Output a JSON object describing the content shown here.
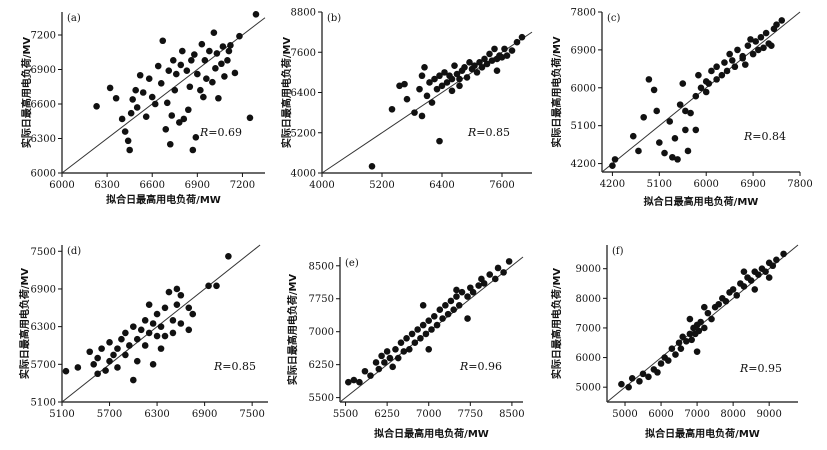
{
  "chart_data": [
    {
      "type": "scatter",
      "panel_label": "(a)",
      "xlabel": "拟合日最高用电负荷/MW",
      "ylabel": "实际日最高用电负荷/MV",
      "xlim": [
        6000,
        7350
      ],
      "ylim": [
        6000,
        7400
      ],
      "xticks": [
        6000,
        6300,
        6600,
        6900,
        7200
      ],
      "yticks": [
        6000,
        6300,
        6600,
        6900,
        7200
      ],
      "r_prefix": "R",
      "r_value": "=0.69",
      "diagonal": true,
      "points": [
        [
          6230,
          6580
        ],
        [
          6320,
          6740
        ],
        [
          6360,
          6650
        ],
        [
          6400,
          6470
        ],
        [
          6420,
          6360
        ],
        [
          6440,
          6280
        ],
        [
          6450,
          6200
        ],
        [
          6460,
          6520
        ],
        [
          6470,
          6640
        ],
        [
          6490,
          6720
        ],
        [
          6500,
          6570
        ],
        [
          6520,
          6850
        ],
        [
          6540,
          6700
        ],
        [
          6560,
          6490
        ],
        [
          6580,
          6820
        ],
        [
          6600,
          6660
        ],
        [
          6620,
          6600
        ],
        [
          6640,
          6930
        ],
        [
          6660,
          6780
        ],
        [
          6670,
          7150
        ],
        [
          6690,
          6380
        ],
        [
          6700,
          6610
        ],
        [
          6710,
          6890
        ],
        [
          6720,
          6250
        ],
        [
          6730,
          6500
        ],
        [
          6740,
          6980
        ],
        [
          6750,
          6720
        ],
        [
          6760,
          6860
        ],
        [
          6780,
          6440
        ],
        [
          6790,
          6940
        ],
        [
          6800,
          7060
        ],
        [
          6810,
          6470
        ],
        [
          6830,
          6890
        ],
        [
          6840,
          6550
        ],
        [
          6850,
          6750
        ],
        [
          6860,
          6980
        ],
        [
          6870,
          6200
        ],
        [
          6880,
          7030
        ],
        [
          6890,
          6310
        ],
        [
          6900,
          6860
        ],
        [
          6920,
          6720
        ],
        [
          6930,
          7120
        ],
        [
          6940,
          6660
        ],
        [
          6950,
          6980
        ],
        [
          6960,
          6820
        ],
        [
          6980,
          7060
        ],
        [
          7000,
          6790
        ],
        [
          7010,
          7220
        ],
        [
          7020,
          6910
        ],
        [
          7030,
          7040
        ],
        [
          7040,
          6650
        ],
        [
          7060,
          6950
        ],
        [
          7070,
          7100
        ],
        [
          7080,
          6840
        ],
        [
          7100,
          6980
        ],
        [
          7110,
          7060
        ],
        [
          7120,
          7110
        ],
        [
          7150,
          6870
        ],
        [
          7180,
          7190
        ],
        [
          7250,
          6480
        ],
        [
          7290,
          7380
        ]
      ]
    },
    {
      "type": "scatter",
      "panel_label": "(b)",
      "xlabel": "",
      "ylabel": "实际日最高用电负荷/MV",
      "xlim": [
        4000,
        8200
      ],
      "ylim": [
        4000,
        8800
      ],
      "xticks": [
        4000,
        5200,
        6400,
        7600
      ],
      "yticks": [
        4000,
        5200,
        6400,
        7600,
        8800
      ],
      "r_prefix": "R",
      "r_value": "=0.85",
      "diagonal": true,
      "points": [
        [
          5000,
          4200
        ],
        [
          5400,
          5900
        ],
        [
          5550,
          6600
        ],
        [
          5700,
          6200
        ],
        [
          5850,
          5800
        ],
        [
          5950,
          6500
        ],
        [
          6000,
          6900
        ],
        [
          6050,
          7150
        ],
        [
          6100,
          6300
        ],
        [
          6150,
          6700
        ],
        [
          6200,
          6100
        ],
        [
          6250,
          6800
        ],
        [
          6300,
          6500
        ],
        [
          6350,
          6900
        ],
        [
          6400,
          6600
        ],
        [
          6450,
          7000
        ],
        [
          6500,
          6700
        ],
        [
          6550,
          6900
        ],
        [
          6600,
          6800
        ],
        [
          6650,
          7200
        ],
        [
          6700,
          6950
        ],
        [
          6750,
          6800
        ],
        [
          6800,
          7050
        ],
        [
          6850,
          7150
        ],
        [
          6900,
          6850
        ],
        [
          6950,
          7300
        ],
        [
          7000,
          7100
        ],
        [
          7050,
          7200
        ],
        [
          7100,
          7000
        ],
        [
          7150,
          7300
        ],
        [
          7200,
          7150
        ],
        [
          7250,
          7400
        ],
        [
          7300,
          7250
        ],
        [
          7350,
          7550
        ],
        [
          7400,
          7350
        ],
        [
          7450,
          7700
        ],
        [
          7500,
          7400
        ],
        [
          7550,
          7500
        ],
        [
          7600,
          7450
        ],
        [
          7650,
          7700
        ],
        [
          7700,
          7500
        ],
        [
          7800,
          7650
        ],
        [
          7900,
          7900
        ],
        [
          8000,
          8050
        ],
        [
          6350,
          4950
        ],
        [
          6000,
          5700
        ],
        [
          5650,
          6650
        ],
        [
          7500,
          7050
        ],
        [
          6600,
          6450
        ],
        [
          6750,
          6600
        ]
      ]
    },
    {
      "type": "scatter",
      "panel_label": "(c)",
      "xlabel": "拟合日最高用电负荷/MW",
      "ylabel": "实际日最高用电负荷/MV",
      "xlim": [
        4000,
        7800
      ],
      "ylim": [
        4000,
        7800
      ],
      "xticks": [
        4200,
        5100,
        6000,
        6900,
        7800
      ],
      "yticks": [
        4200,
        5100,
        6000,
        6900,
        7800
      ],
      "r_prefix": "R",
      "r_value": "=0.84",
      "diagonal": true,
      "points": [
        [
          4200,
          4150
        ],
        [
          4250,
          4300
        ],
        [
          4600,
          4850
        ],
        [
          4700,
          4500
        ],
        [
          4800,
          5300
        ],
        [
          4900,
          6200
        ],
        [
          5000,
          5950
        ],
        [
          5050,
          5450
        ],
        [
          5100,
          4700
        ],
        [
          5200,
          4450
        ],
        [
          5300,
          5200
        ],
        [
          5350,
          4350
        ],
        [
          5400,
          4800
        ],
        [
          5450,
          4300
        ],
        [
          5500,
          5600
        ],
        [
          5550,
          6100
        ],
        [
          5600,
          5000
        ],
        [
          5650,
          4500
        ],
        [
          5700,
          5400
        ],
        [
          5800,
          5800
        ],
        [
          5850,
          6300
        ],
        [
          5900,
          6000
        ],
        [
          6000,
          5900
        ],
        [
          6050,
          6100
        ],
        [
          6100,
          6400
        ],
        [
          6200,
          6200
        ],
        [
          6300,
          6300
        ],
        [
          6350,
          6600
        ],
        [
          6400,
          6400
        ],
        [
          6500,
          6650
        ],
        [
          6550,
          6500
        ],
        [
          6600,
          6900
        ],
        [
          6700,
          6750
        ],
        [
          6750,
          6550
        ],
        [
          6800,
          7000
        ],
        [
          6900,
          6800
        ],
        [
          6950,
          7100
        ],
        [
          7000,
          6900
        ],
        [
          7050,
          7200
        ],
        [
          7100,
          6950
        ],
        [
          7150,
          7300
        ],
        [
          7200,
          7050
        ],
        [
          7300,
          7400
        ],
        [
          7350,
          7500
        ],
        [
          7450,
          7600
        ],
        [
          5800,
          5000
        ],
        [
          6000,
          6150
        ],
        [
          5600,
          5450
        ],
        [
          6200,
          6500
        ],
        [
          6450,
          6800
        ],
        [
          6700,
          6700
        ],
        [
          6850,
          7150
        ],
        [
          7250,
          7000
        ]
      ]
    },
    {
      "type": "scatter",
      "panel_label": "(d)",
      "xlabel": "",
      "ylabel": "实际日最高用电负荷/MV",
      "xlim": [
        5100,
        7700
      ],
      "ylim": [
        5100,
        7600
      ],
      "xticks": [
        5100,
        5700,
        6300,
        6900,
        7500
      ],
      "yticks": [
        5100,
        5700,
        6300,
        6900,
        7500
      ],
      "r_prefix": "R",
      "r_value": "=0.85",
      "diagonal": true,
      "points": [
        [
          5150,
          5590
        ],
        [
          5300,
          5650
        ],
        [
          5450,
          5900
        ],
        [
          5500,
          5700
        ],
        [
          5550,
          5800
        ],
        [
          5600,
          5950
        ],
        [
          5650,
          5600
        ],
        [
          5700,
          5750
        ],
        [
          5700,
          6050
        ],
        [
          5750,
          5850
        ],
        [
          5800,
          5650
        ],
        [
          5800,
          5950
        ],
        [
          5850,
          6100
        ],
        [
          5900,
          5850
        ],
        [
          5900,
          6200
        ],
        [
          5950,
          6000
        ],
        [
          6000,
          6300
        ],
        [
          6050,
          6100
        ],
        [
          6050,
          5750
        ],
        [
          6100,
          6250
        ],
        [
          6150,
          6000
        ],
        [
          6150,
          6400
        ],
        [
          6200,
          6200
        ],
        [
          6200,
          6650
        ],
        [
          6250,
          6350
        ],
        [
          6300,
          6150
        ],
        [
          6300,
          6500
        ],
        [
          6350,
          5950
        ],
        [
          6350,
          6300
        ],
        [
          6400,
          6600
        ],
        [
          6400,
          6150
        ],
        [
          6450,
          6850
        ],
        [
          6500,
          6400
        ],
        [
          6500,
          6200
        ],
        [
          6550,
          6650
        ],
        [
          6550,
          6900
        ],
        [
          6600,
          6350
        ],
        [
          6700,
          6600
        ],
        [
          6700,
          6250
        ],
        [
          6950,
          6950
        ],
        [
          7050,
          6950
        ],
        [
          7200,
          7420
        ],
        [
          6000,
          5450
        ],
        [
          5550,
          5550
        ],
        [
          6250,
          5700
        ],
        [
          6600,
          6800
        ],
        [
          6750,
          6500
        ]
      ]
    },
    {
      "type": "scatter",
      "panel_label": "(e)",
      "xlabel": "拟合日最高用电负荷/MW",
      "ylabel": "实际日最高用电负荷/MV",
      "xlim": [
        5400,
        8700
      ],
      "ylim": [
        5400,
        8700
      ],
      "xticks": [
        5500,
        6250,
        7000,
        7750,
        8500
      ],
      "yticks": [
        5500,
        6250,
        7000,
        7750,
        8500
      ],
      "r_prefix": "R",
      "r_value": "=0.96",
      "diagonal": true,
      "points": [
        [
          5550,
          5850
        ],
        [
          5650,
          5900
        ],
        [
          5750,
          5850
        ],
        [
          5850,
          6100
        ],
        [
          5950,
          6000
        ],
        [
          6050,
          6300
        ],
        [
          6100,
          6150
        ],
        [
          6150,
          6450
        ],
        [
          6200,
          6300
        ],
        [
          6250,
          6550
        ],
        [
          6300,
          6400
        ],
        [
          6350,
          6200
        ],
        [
          6400,
          6600
        ],
        [
          6450,
          6400
        ],
        [
          6500,
          6750
        ],
        [
          6550,
          6550
        ],
        [
          6600,
          6850
        ],
        [
          6650,
          6600
        ],
        [
          6700,
          6950
        ],
        [
          6750,
          6750
        ],
        [
          6800,
          7050
        ],
        [
          6850,
          6850
        ],
        [
          6900,
          7150
        ],
        [
          6950,
          6950
        ],
        [
          7000,
          7250
        ],
        [
          7050,
          7050
        ],
        [
          7100,
          7350
        ],
        [
          7150,
          7150
        ],
        [
          7200,
          7500
        ],
        [
          7250,
          7300
        ],
        [
          7300,
          7600
        ],
        [
          7350,
          7400
        ],
        [
          7400,
          7700
        ],
        [
          7450,
          7500
        ],
        [
          7500,
          7800
        ],
        [
          7550,
          7600
        ],
        [
          7600,
          7900
        ],
        [
          7700,
          7800
        ],
        [
          7750,
          8000
        ],
        [
          7800,
          7900
        ],
        [
          7900,
          8050
        ],
        [
          7950,
          8200
        ],
        [
          8000,
          8100
        ],
        [
          8100,
          8300
        ],
        [
          8200,
          8200
        ],
        [
          8250,
          8450
        ],
        [
          8350,
          8350
        ],
        [
          8450,
          8600
        ],
        [
          7000,
          6600
        ],
        [
          7500,
          7950
        ],
        [
          6900,
          7600
        ],
        [
          7700,
          7300
        ]
      ]
    },
    {
      "type": "scatter",
      "panel_label": "(f)",
      "xlabel": "拟合日最高用电负荷/MW",
      "ylabel": "实际日最高用电负荷/MV",
      "xlim": [
        4500,
        9800
      ],
      "ylim": [
        4500,
        9800
      ],
      "xticks": [
        5000,
        6000,
        7000,
        8000,
        9000
      ],
      "yticks": [
        5000,
        6000,
        7000,
        8000,
        9000
      ],
      "r_prefix": "R",
      "r_value": "=0.95",
      "diagonal": true,
      "points": [
        [
          4900,
          5100
        ],
        [
          5100,
          5000
        ],
        [
          5200,
          5300
        ],
        [
          5400,
          5200
        ],
        [
          5500,
          5450
        ],
        [
          5650,
          5350
        ],
        [
          5800,
          5600
        ],
        [
          5900,
          5500
        ],
        [
          6000,
          5800
        ],
        [
          6100,
          6000
        ],
        [
          6200,
          5900
        ],
        [
          6300,
          6300
        ],
        [
          6400,
          6100
        ],
        [
          6500,
          6500
        ],
        [
          6550,
          6300
        ],
        [
          6600,
          6700
        ],
        [
          6700,
          6550
        ],
        [
          6800,
          6800
        ],
        [
          6850,
          6600
        ],
        [
          6900,
          7000
        ],
        [
          6950,
          6800
        ],
        [
          7000,
          7100
        ],
        [
          7050,
          6900
        ],
        [
          7100,
          7200
        ],
        [
          7200,
          7000
        ],
        [
          7300,
          7500
        ],
        [
          7400,
          7300
        ],
        [
          7500,
          7700
        ],
        [
          7600,
          7800
        ],
        [
          7700,
          8000
        ],
        [
          7800,
          7900
        ],
        [
          7900,
          8200
        ],
        [
          8000,
          8300
        ],
        [
          8100,
          8100
        ],
        [
          8200,
          8500
        ],
        [
          8300,
          8400
        ],
        [
          8400,
          8700
        ],
        [
          8500,
          8600
        ],
        [
          8600,
          8900
        ],
        [
          8700,
          8800
        ],
        [
          8800,
          9000
        ],
        [
          8900,
          8900
        ],
        [
          9000,
          9200
        ],
        [
          9100,
          9100
        ],
        [
          9200,
          9300
        ],
        [
          9400,
          9500
        ],
        [
          7000,
          6200
        ],
        [
          7200,
          7700
        ],
        [
          8300,
          8900
        ],
        [
          8600,
          8300
        ],
        [
          6800,
          7300
        ],
        [
          9000,
          8700
        ]
      ]
    }
  ]
}
